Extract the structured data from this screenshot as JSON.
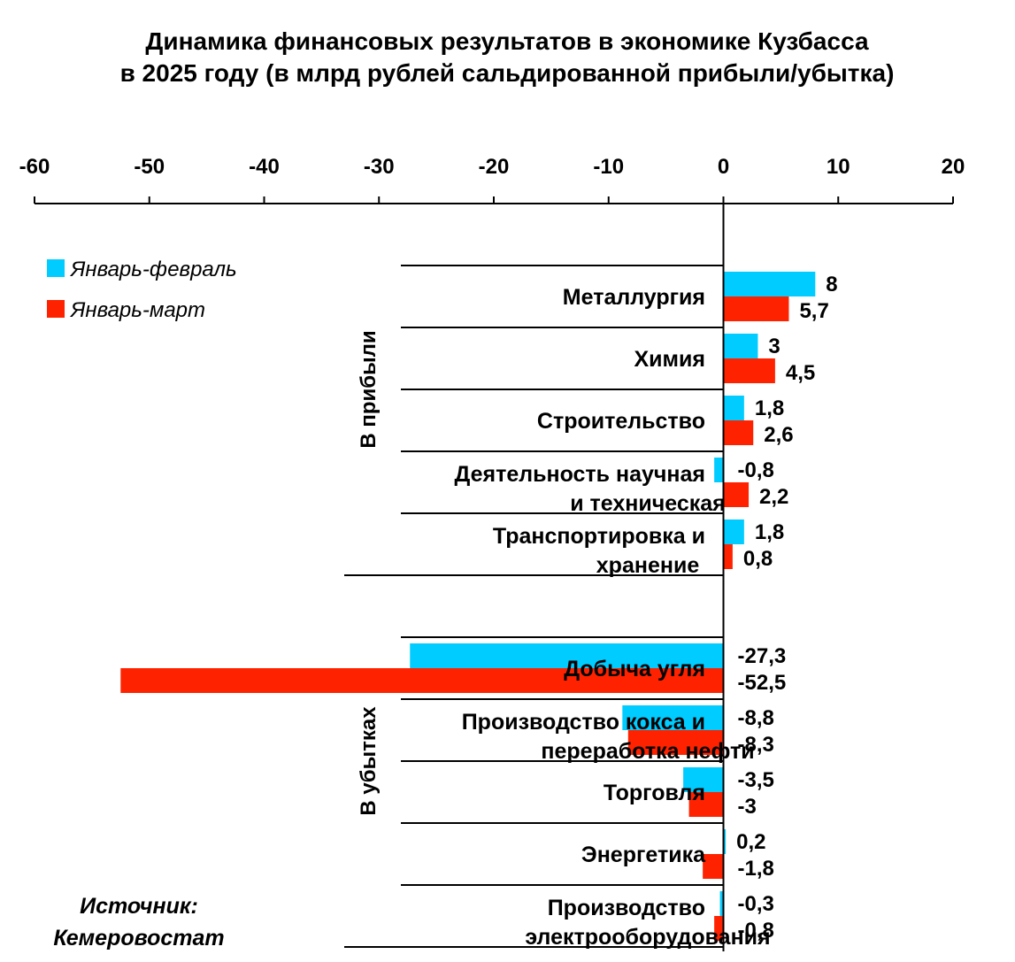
{
  "chart_data": {
    "type": "bar",
    "orientation": "horizontal",
    "title": [
      "Динамика финансовых результатов в экономике Кузбасса",
      "в 2025 году (в млрд рублей сальдированной прибыли/убытка)"
    ],
    "xlim": [
      -60,
      20
    ],
    "xticks": [
      -60,
      -50,
      -40,
      -30,
      -20,
      -10,
      0,
      10,
      20
    ],
    "legend_position": "top-left",
    "grid": false,
    "series": [
      {
        "name": "Январь-февраль",
        "color": "#00ccff"
      },
      {
        "name": "Январь-март",
        "color": "#ff2200"
      }
    ],
    "groups": [
      {
        "label": "В прибыли",
        "categories": [
          {
            "label": [
              "Металлургия"
            ],
            "values": [
              8,
              5.7
            ],
            "value_labels": [
              "8",
              "5,7"
            ]
          },
          {
            "label": [
              "Химия"
            ],
            "values": [
              3,
              4.5
            ],
            "value_labels": [
              "3",
              "4,5"
            ]
          },
          {
            "label": [
              "Строительство"
            ],
            "values": [
              1.8,
              2.6
            ],
            "value_labels": [
              "1,8",
              "2,6"
            ]
          },
          {
            "label": [
              "Деятельность научная",
              "и техническая"
            ],
            "values": [
              -0.8,
              2.2
            ],
            "value_labels": [
              "-0,8",
              "2,2"
            ]
          },
          {
            "label": [
              "Транспортировка и",
              "хранение"
            ],
            "values": [
              1.8,
              0.8
            ],
            "value_labels": [
              "1,8",
              "0,8"
            ]
          }
        ]
      },
      {
        "label": "В убытках",
        "categories": [
          {
            "label": [
              "Добыча угля"
            ],
            "values": [
              -27.3,
              -52.5
            ],
            "value_labels": [
              "-27,3",
              "-52,5"
            ]
          },
          {
            "label": [
              "Производство кокса и",
              "переработка нефти"
            ],
            "values": [
              -8.8,
              -8.3
            ],
            "value_labels": [
              "-8,8",
              "-8,3"
            ]
          },
          {
            "label": [
              "Торговля"
            ],
            "values": [
              -3.5,
              -3
            ],
            "value_labels": [
              "-3,5",
              "-3"
            ]
          },
          {
            "label": [
              "Энергетика"
            ],
            "values": [
              0.2,
              -1.8
            ],
            "value_labels": [
              "0,2",
              "-1,8"
            ]
          },
          {
            "label": [
              "Производство",
              "электрооборудования"
            ],
            "values": [
              -0.3,
              -0.8
            ],
            "value_labels": [
              "-0,3",
              "-0,8"
            ]
          }
        ]
      }
    ],
    "source": [
      "Источник:",
      "Кемеровостат"
    ]
  }
}
